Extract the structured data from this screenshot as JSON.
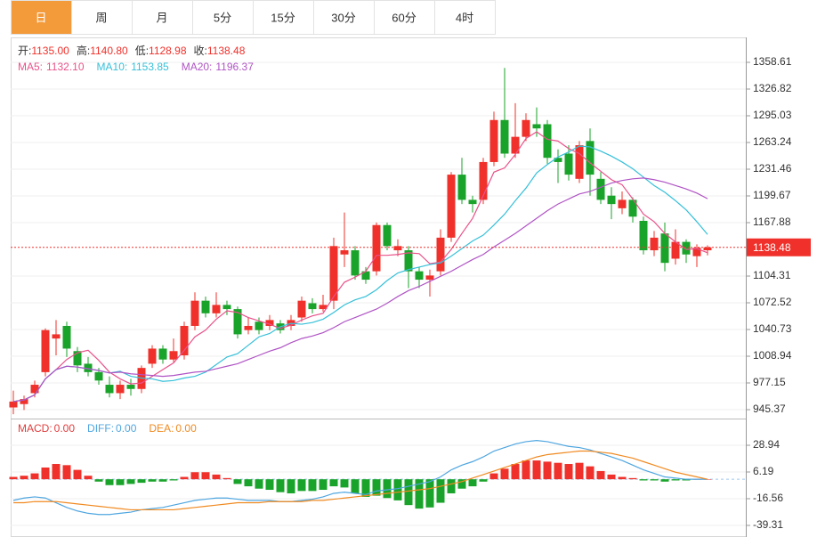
{
  "tabs": {
    "items": [
      "日",
      "周",
      "月",
      "5分",
      "15分",
      "30分",
      "60分",
      "4时"
    ],
    "selected": 0
  },
  "chart_data": [
    {
      "type": "candlestick",
      "info": [
        {
          "label": "开:",
          "text": "1135.00"
        },
        {
          "label": "高:",
          "text": "1140.80"
        },
        {
          "label": "低:",
          "text": "1128.98"
        },
        {
          "label": "收:",
          "text": "1138.48"
        }
      ],
      "open": [
        948,
        952,
        965,
        990,
        1030,
        1045,
        1015,
        1000,
        990,
        975,
        965,
        975,
        970,
        1000,
        1018,
        1005,
        1010,
        1045,
        1075,
        1060,
        1070,
        1065,
        1040,
        1050,
        1045,
        1048,
        1045,
        1055,
        1072,
        1065,
        1075,
        1130,
        1135,
        1110,
        1110,
        1165,
        1135,
        1135,
        1110,
        1100,
        1110,
        1150,
        1225,
        1195,
        1195,
        1240,
        1290,
        1250,
        1270,
        1285,
        1285,
        1245,
        1250,
        1220,
        1265,
        1220,
        1200,
        1185,
        1195,
        1170,
        1135,
        1155,
        1125,
        1145,
        1128,
        1135
      ],
      "high": [
        968,
        962,
        980,
        1042,
        1052,
        1050,
        1020,
        1008,
        995,
        985,
        980,
        982,
        998,
        1022,
        1022,
        1030,
        1050,
        1085,
        1080,
        1085,
        1075,
        1068,
        1055,
        1055,
        1058,
        1052,
        1058,
        1080,
        1078,
        1082,
        1150,
        1180,
        1140,
        1115,
        1168,
        1168,
        1148,
        1140,
        1115,
        1112,
        1160,
        1228,
        1245,
        1200,
        1245,
        1300,
        1352,
        1310,
        1298,
        1305,
        1290,
        1255,
        1260,
        1265,
        1280,
        1228,
        1210,
        1205,
        1198,
        1175,
        1158,
        1168,
        1160,
        1148,
        1142,
        1140.8
      ],
      "low": [
        940,
        945,
        960,
        985,
        1010,
        1008,
        990,
        985,
        975,
        960,
        958,
        962,
        965,
        995,
        1000,
        1002,
        1005,
        1040,
        1055,
        1055,
        1058,
        1030,
        1035,
        1035,
        1040,
        1036,
        1040,
        1050,
        1060,
        1062,
        1065,
        1115,
        1100,
        1095,
        1105,
        1135,
        1128,
        1090,
        1090,
        1080,
        1105,
        1145,
        1190,
        1180,
        1190,
        1235,
        1245,
        1245,
        1265,
        1270,
        1238,
        1215,
        1218,
        1215,
        1200,
        1190,
        1172,
        1178,
        1168,
        1130,
        1128,
        1110,
        1118,
        1120,
        1115,
        1128.98
      ],
      "close": [
        955,
        958,
        975,
        1040,
        1035,
        1018,
        998,
        990,
        980,
        965,
        975,
        970,
        995,
        1018,
        1005,
        1015,
        1045,
        1075,
        1060,
        1070,
        1065,
        1035,
        1045,
        1040,
        1052,
        1040,
        1052,
        1075,
        1065,
        1070,
        1140,
        1135,
        1105,
        1100,
        1165,
        1140,
        1140,
        1110,
        1100,
        1105,
        1150,
        1225,
        1195,
        1190,
        1240,
        1290,
        1250,
        1270,
        1290,
        1280,
        1245,
        1240,
        1225,
        1260,
        1225,
        1195,
        1190,
        1195,
        1175,
        1135,
        1150,
        1120,
        1145,
        1130,
        1138,
        1138.48
      ],
      "up_color": "#f0302a",
      "down_color": "#1aa32a",
      "price_color": "#f0302a",
      "series": [
        {
          "name": "MA5:",
          "label": "1132.10",
          "color": "#e9528a",
          "values": [
            955,
            957,
            963,
            982,
            993,
            1005,
            1013,
            1016,
            1004,
            990,
            982,
            976,
            977,
            985,
            993,
            1001,
            1016,
            1032,
            1040,
            1053,
            1063,
            1061,
            1055,
            1051,
            1047,
            1042,
            1046,
            1052,
            1057,
            1060,
            1080,
            1097,
            1103,
            1110,
            1129,
            1129,
            1130,
            1132,
            1131,
            1119,
            1121,
            1136,
            1155,
            1173,
            1200,
            1228,
            1233,
            1249,
            1268,
            1276,
            1267,
            1265,
            1256,
            1250,
            1239,
            1229,
            1219,
            1213,
            1196,
            1178,
            1169,
            1155,
            1145,
            1136,
            1137,
            1132.1
          ]
        },
        {
          "name": "MA10:",
          "label": "1153.85",
          "color": "#36c0d9",
          "values": [
            955,
            957,
            963,
            982,
            993,
            997,
            996,
            994,
            992,
            989,
            991,
            985,
            983,
            982,
            979,
            980,
            983,
            985,
            990,
            999,
            1008,
            1012,
            1022,
            1032,
            1036,
            1044,
            1048,
            1047,
            1049,
            1053,
            1061,
            1070,
            1076,
            1080,
            1088,
            1099,
            1108,
            1112,
            1115,
            1118,
            1120,
            1128,
            1137,
            1146,
            1153,
            1165,
            1178,
            1194,
            1209,
            1227,
            1237,
            1246,
            1252,
            1259,
            1258,
            1253,
            1247,
            1240,
            1232,
            1222,
            1212,
            1204,
            1194,
            1183,
            1169,
            1153.85
          ]
        },
        {
          "name": "MA20:",
          "label": "1196.37",
          "color": "#b054c5",
          "values": [
            955,
            957,
            963,
            982,
            993,
            997,
            996,
            994,
            992,
            989,
            990,
            988,
            987,
            986,
            985,
            986,
            988,
            990,
            991,
            994,
            997,
            1000,
            1005,
            1010,
            1015,
            1019,
            1025,
            1030,
            1033,
            1037,
            1043,
            1050,
            1055,
            1060,
            1065,
            1072,
            1080,
            1087,
            1092,
            1098,
            1104,
            1110,
            1117,
            1124,
            1130,
            1139,
            1147,
            1155,
            1164,
            1173,
            1182,
            1190,
            1196,
            1202,
            1205,
            1210,
            1215,
            1218,
            1220,
            1221,
            1219,
            1216,
            1212,
            1208,
            1203,
            1196.37
          ]
        }
      ],
      "ylim": [
        934.77,
        1388.28
      ],
      "yticks": [
        945.37,
        977.15,
        1008.94,
        1040.73,
        1072.52,
        1104.31,
        1167.88,
        1199.67,
        1231.46,
        1263.24,
        1295.03,
        1326.82,
        1358.61
      ],
      "grid": true
    },
    {
      "type": "macd",
      "up_color": "#f0302a",
      "down_color": "#1aa32a",
      "series": [
        {
          "name": "MACD:",
          "label": "0.00",
          "color": "#e23c3c",
          "values": [
            2,
            3,
            5,
            10,
            13,
            12,
            8,
            3,
            -2,
            -5,
            -5,
            -4,
            -3,
            -2,
            -2,
            -1,
            2,
            6,
            6,
            4,
            1,
            -4,
            -6,
            -8,
            -9,
            -11,
            -12,
            -10,
            -10,
            -9,
            -6,
            -7,
            -12,
            -15,
            -14,
            -16,
            -18,
            -22,
            -25,
            -24,
            -20,
            -12,
            -8,
            -6,
            -2,
            5,
            9,
            13,
            16,
            16,
            15,
            14,
            13,
            14,
            11,
            7,
            4,
            2,
            1,
            -1,
            -1,
            -2,
            -1,
            -1,
            0,
            0
          ]
        },
        {
          "name": "DIFF:",
          "label": "0.00",
          "color": "#4fa6e0",
          "values": [
            -18,
            -16,
            -15,
            -16,
            -20,
            -24,
            -27,
            -29,
            -30,
            -30,
            -29,
            -28,
            -26,
            -25,
            -24,
            -22,
            -20,
            -18,
            -17,
            -16,
            -16,
            -17,
            -18,
            -18,
            -18,
            -19,
            -19,
            -18,
            -17,
            -15,
            -12,
            -11,
            -12,
            -13,
            -10,
            -9,
            -8,
            -6,
            -4,
            -2,
            2,
            8,
            12,
            15,
            19,
            24,
            27,
            30,
            32,
            33,
            32,
            30,
            28,
            27,
            25,
            22,
            19,
            16,
            12,
            8,
            5,
            2,
            1,
            0,
            0,
            0
          ]
        },
        {
          "name": "DEA:",
          "label": "0.00",
          "color": "#f08a21",
          "values": [
            -20,
            -20,
            -19,
            -19,
            -19,
            -20,
            -21,
            -22,
            -23,
            -24,
            -25,
            -26,
            -26,
            -26,
            -26,
            -26,
            -25,
            -24,
            -23,
            -22,
            -21,
            -20,
            -20,
            -20,
            -19,
            -19,
            -19,
            -19,
            -18,
            -18,
            -17,
            -16,
            -15,
            -14,
            -13,
            -12,
            -11,
            -10,
            -9,
            -8,
            -6,
            -4,
            -2,
            1,
            4,
            7,
            10,
            13,
            16,
            19,
            21,
            22,
            23,
            24,
            24,
            23,
            22,
            20,
            18,
            15,
            12,
            9,
            6,
            4,
            2,
            0
          ]
        }
      ],
      "ylim": [
        -49.17,
        50.17
      ],
      "yticks": [
        -39.31,
        -16.56,
        6.19,
        28.94
      ],
      "grid": true
    }
  ]
}
